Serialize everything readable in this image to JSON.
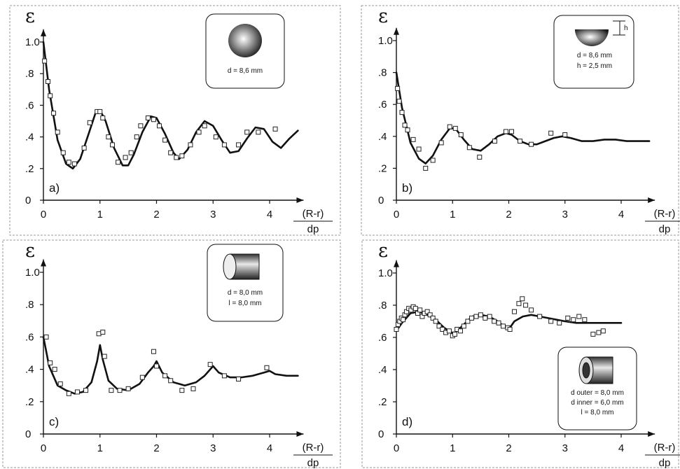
{
  "chart_data": [
    {
      "type": "line",
      "panel_label": "a)",
      "ylabel": "ε",
      "xlabel_num": "(R-r)",
      "xlabel_den": "dp",
      "xlim": [
        0,
        4.6
      ],
      "ylim": [
        0,
        1.08
      ],
      "x_ticks": [
        "0",
        "1",
        "2",
        "3",
        "4"
      ],
      "y_ticks": [
        "0",
        ".2",
        ".4",
        ".6",
        ".8",
        "1.0"
      ],
      "inset_shape": "sphere",
      "inset_lines": [
        "d = 8,6 mm"
      ],
      "curve": {
        "x": [
          0,
          0.1,
          0.25,
          0.4,
          0.52,
          0.65,
          0.8,
          0.92,
          1.0,
          1.1,
          1.25,
          1.4,
          1.5,
          1.6,
          1.75,
          1.9,
          2.0,
          2.15,
          2.3,
          2.4,
          2.55,
          2.7,
          2.85,
          3.0,
          3.15,
          3.3,
          3.45,
          3.6,
          3.75,
          3.9,
          4.05,
          4.2,
          4.35,
          4.5
        ],
        "y": [
          1.0,
          0.7,
          0.38,
          0.23,
          0.2,
          0.26,
          0.42,
          0.55,
          0.57,
          0.5,
          0.33,
          0.22,
          0.22,
          0.29,
          0.43,
          0.53,
          0.52,
          0.42,
          0.3,
          0.26,
          0.32,
          0.43,
          0.5,
          0.47,
          0.38,
          0.3,
          0.31,
          0.39,
          0.46,
          0.45,
          0.37,
          0.33,
          0.39,
          0.44
        ]
      },
      "points": {
        "x": [
          0.02,
          0.08,
          0.12,
          0.18,
          0.25,
          0.35,
          0.45,
          0.55,
          0.72,
          0.82,
          0.95,
          1.0,
          1.05,
          1.15,
          1.22,
          1.32,
          1.45,
          1.55,
          1.65,
          1.72,
          1.85,
          1.95,
          2.05,
          2.15,
          2.25,
          2.35,
          2.45,
          2.6,
          2.75,
          2.85,
          3.05,
          3.2,
          3.45,
          3.6,
          3.8,
          4.1
        ],
        "y": [
          0.88,
          0.75,
          0.66,
          0.55,
          0.43,
          0.3,
          0.24,
          0.23,
          0.33,
          0.49,
          0.56,
          0.56,
          0.52,
          0.4,
          0.35,
          0.24,
          0.27,
          0.3,
          0.4,
          0.47,
          0.52,
          0.51,
          0.47,
          0.38,
          0.3,
          0.27,
          0.28,
          0.35,
          0.43,
          0.47,
          0.4,
          0.35,
          0.35,
          0.43,
          0.43,
          0.45
        ]
      }
    },
    {
      "type": "line",
      "panel_label": "b)",
      "ylabel": "ε",
      "xlabel_num": "(R-r)",
      "xlabel_den": "dp",
      "xlim": [
        0,
        4.6
      ],
      "ylim": [
        0,
        1.08
      ],
      "x_ticks": [
        "0",
        "1",
        "2",
        "3",
        "4"
      ],
      "y_ticks": [
        "0",
        ".2",
        ".4",
        ".6",
        ".8",
        "1.0"
      ],
      "inset_shape": "hemisphere",
      "inset_lines": [
        "d = 8,6 mm",
        "h = 2,5 mm"
      ],
      "inset_dim_label": "h",
      "curve": {
        "x": [
          0,
          0.1,
          0.25,
          0.4,
          0.52,
          0.65,
          0.8,
          0.95,
          1.05,
          1.2,
          1.35,
          1.5,
          1.65,
          1.8,
          1.95,
          2.05,
          2.2,
          2.35,
          2.5,
          2.65,
          2.8,
          2.95,
          3.1,
          3.3,
          3.5,
          3.7,
          3.9,
          4.1,
          4.3,
          4.5
        ],
        "y": [
          0.8,
          0.58,
          0.36,
          0.26,
          0.23,
          0.28,
          0.38,
          0.45,
          0.45,
          0.38,
          0.32,
          0.31,
          0.35,
          0.4,
          0.42,
          0.41,
          0.37,
          0.35,
          0.35,
          0.37,
          0.39,
          0.4,
          0.39,
          0.37,
          0.37,
          0.38,
          0.38,
          0.37,
          0.37,
          0.37
        ]
      },
      "points": {
        "x": [
          0.02,
          0.05,
          0.1,
          0.15,
          0.2,
          0.3,
          0.4,
          0.52,
          0.65,
          0.8,
          0.95,
          1.05,
          1.15,
          1.3,
          1.48,
          1.75,
          1.95,
          2.05,
          2.2,
          2.4,
          2.75,
          3.0
        ],
        "y": [
          0.7,
          0.62,
          0.55,
          0.47,
          0.44,
          0.38,
          0.32,
          0.2,
          0.25,
          0.36,
          0.46,
          0.45,
          0.41,
          0.33,
          0.27,
          0.37,
          0.43,
          0.43,
          0.37,
          0.35,
          0.42,
          0.41
        ]
      }
    },
    {
      "type": "line",
      "panel_label": "c)",
      "ylabel": "ε",
      "xlabel_num": "(R-r)",
      "xlabel_den": "dp",
      "xlim": [
        0,
        4.6
      ],
      "ylim": [
        0,
        1.08
      ],
      "x_ticks": [
        "0",
        "1",
        "2",
        "3",
        "4"
      ],
      "y_ticks": [
        "0",
        ".2",
        ".4",
        ".6",
        ".8",
        "1.0"
      ],
      "inset_shape": "cylinder",
      "inset_lines": [
        "d = 8,0 mm",
        "l = 8,0 mm"
      ],
      "curve": {
        "x": [
          0,
          0.1,
          0.25,
          0.4,
          0.55,
          0.7,
          0.85,
          0.95,
          1.0,
          1.05,
          1.15,
          1.3,
          1.5,
          1.7,
          1.85,
          1.95,
          2.0,
          2.1,
          2.3,
          2.5,
          2.7,
          2.85,
          2.95,
          3.0,
          3.1,
          3.3,
          3.5,
          3.7,
          3.9,
          4.0,
          4.1,
          4.3,
          4.5
        ],
        "y": [
          0.6,
          0.42,
          0.3,
          0.27,
          0.25,
          0.26,
          0.32,
          0.45,
          0.55,
          0.46,
          0.33,
          0.28,
          0.27,
          0.31,
          0.38,
          0.42,
          0.45,
          0.38,
          0.32,
          0.3,
          0.32,
          0.36,
          0.4,
          0.42,
          0.38,
          0.35,
          0.35,
          0.36,
          0.38,
          0.39,
          0.37,
          0.36,
          0.36
        ]
      },
      "points": {
        "x": [
          0.05,
          0.12,
          0.2,
          0.3,
          0.45,
          0.6,
          0.75,
          0.98,
          1.05,
          1.08,
          1.2,
          1.35,
          1.5,
          1.75,
          1.95,
          2.0,
          2.15,
          2.25,
          2.45,
          2.65,
          2.95,
          3.2,
          3.45,
          3.95
        ],
        "y": [
          0.6,
          0.44,
          0.4,
          0.31,
          0.25,
          0.26,
          0.27,
          0.62,
          0.63,
          0.48,
          0.27,
          0.27,
          0.28,
          0.35,
          0.51,
          0.42,
          0.36,
          0.33,
          0.27,
          0.28,
          0.43,
          0.36,
          0.34,
          0.41
        ]
      }
    },
    {
      "type": "line",
      "panel_label": "d)",
      "ylabel": "ε",
      "xlabel_num": "(R-r)",
      "xlabel_den": "dp",
      "xlim": [
        0,
        4.6
      ],
      "ylim": [
        0,
        1.08
      ],
      "x_ticks": [
        "0",
        "1",
        "2",
        "3",
        "4"
      ],
      "y_ticks": [
        "0",
        ".2",
        ".4",
        ".6",
        ".8",
        "1.0"
      ],
      "inset_shape": "hollow-cylinder",
      "inset_lines": [
        "d outer = 8,0 mm",
        "d inner = 6,0 mm",
        "l = 8,0 mm"
      ],
      "curve": {
        "x": [
          0,
          0.1,
          0.25,
          0.4,
          0.55,
          0.7,
          0.85,
          0.98,
          1.05,
          1.2,
          1.35,
          1.5,
          1.65,
          1.8,
          1.95,
          2.0,
          2.1,
          2.25,
          2.4,
          2.55,
          2.7,
          2.85,
          3.0,
          3.2,
          3.4,
          3.6,
          3.8,
          4.0
        ],
        "y": [
          0.64,
          0.69,
          0.75,
          0.76,
          0.74,
          0.71,
          0.66,
          0.63,
          0.63,
          0.68,
          0.73,
          0.74,
          0.73,
          0.7,
          0.66,
          0.65,
          0.7,
          0.73,
          0.74,
          0.73,
          0.72,
          0.71,
          0.7,
          0.69,
          0.69,
          0.69,
          0.69,
          0.69
        ]
      },
      "points": {
        "x": [
          0.0,
          0.03,
          0.06,
          0.09,
          0.12,
          0.15,
          0.18,
          0.22,
          0.26,
          0.3,
          0.34,
          0.38,
          0.42,
          0.46,
          0.5,
          0.55,
          0.6,
          0.65,
          0.7,
          0.76,
          0.82,
          0.88,
          0.94,
          1.0,
          1.04,
          1.08,
          1.14,
          1.2,
          1.27,
          1.34,
          1.42,
          1.5,
          1.58,
          1.66,
          1.74,
          1.82,
          1.9,
          1.98,
          2.02,
          2.1,
          2.18,
          2.24,
          2.3,
          2.4,
          2.55,
          2.75,
          2.9,
          3.05,
          3.15,
          3.25,
          3.35,
          3.5,
          3.6,
          3.68
        ],
        "y": [
          0.65,
          0.68,
          0.7,
          0.72,
          0.71,
          0.74,
          0.76,
          0.78,
          0.77,
          0.79,
          0.78,
          0.75,
          0.77,
          0.73,
          0.75,
          0.76,
          0.74,
          0.72,
          0.7,
          0.67,
          0.65,
          0.63,
          0.64,
          0.61,
          0.62,
          0.65,
          0.64,
          0.67,
          0.7,
          0.72,
          0.73,
          0.74,
          0.72,
          0.73,
          0.7,
          0.69,
          0.67,
          0.66,
          0.65,
          0.76,
          0.81,
          0.84,
          0.8,
          0.77,
          0.73,
          0.7,
          0.69,
          0.72,
          0.71,
          0.73,
          0.71,
          0.62,
          0.63,
          0.64
        ]
      }
    }
  ]
}
